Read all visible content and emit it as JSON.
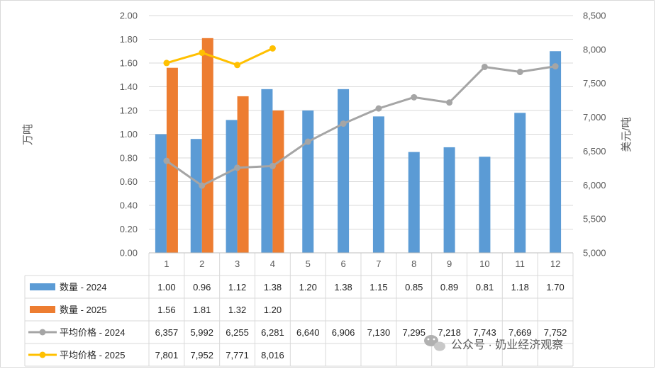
{
  "chart_data": {
    "type": "bar",
    "categories": [
      "1",
      "2",
      "3",
      "4",
      "5",
      "6",
      "7",
      "8",
      "9",
      "10",
      "11",
      "12"
    ],
    "y_left": {
      "label": "万吨",
      "ylim": [
        0,
        2.0
      ],
      "ticks": [
        "0.00",
        "0.20",
        "0.40",
        "0.60",
        "0.80",
        "1.00",
        "1.20",
        "1.40",
        "1.60",
        "1.80",
        "2.00"
      ]
    },
    "y_right": {
      "label": "美元/吨",
      "ylim": [
        5000,
        8500
      ],
      "ticks": [
        "5,000",
        "5,500",
        "6,000",
        "6,500",
        "7,000",
        "7,500",
        "8,000",
        "8,500"
      ]
    },
    "series": [
      {
        "name": "数量 - 2024",
        "type": "bar",
        "axis": "left",
        "color": "#5b9bd5",
        "values": [
          1.0,
          0.96,
          1.12,
          1.38,
          1.2,
          1.38,
          1.15,
          0.85,
          0.89,
          0.81,
          1.18,
          1.7
        ],
        "labels": [
          "1.00",
          "0.96",
          "1.12",
          "1.38",
          "1.20",
          "1.38",
          "1.15",
          "0.85",
          "0.89",
          "0.81",
          "1.18",
          "1.70"
        ]
      },
      {
        "name": "数量 - 2025",
        "type": "bar",
        "axis": "left",
        "color": "#ed7d31",
        "values": [
          1.56,
          1.81,
          1.32,
          1.2,
          null,
          null,
          null,
          null,
          null,
          null,
          null,
          null
        ],
        "labels": [
          "1.56",
          "1.81",
          "1.32",
          "1.20",
          "",
          "",
          "",
          "",
          "",
          "",
          "",
          ""
        ]
      },
      {
        "name": "平均价格 - 2024",
        "type": "line",
        "axis": "right",
        "color": "#a5a5a5",
        "values": [
          6357,
          5992,
          6255,
          6281,
          6640,
          6906,
          7130,
          7295,
          7218,
          7743,
          7669,
          7752
        ],
        "labels": [
          "6,357",
          "5,992",
          "6,255",
          "6,281",
          "6,640",
          "6,906",
          "7,130",
          "7,295",
          "7,218",
          "7,743",
          "7,669",
          "7,752"
        ]
      },
      {
        "name": "平均价格 - 2025",
        "type": "line",
        "axis": "right",
        "color": "#ffc000",
        "values": [
          7801,
          7952,
          7771,
          8016,
          null,
          null,
          null,
          null,
          null,
          null,
          null,
          null
        ],
        "labels": [
          "7,801",
          "7,952",
          "7,771",
          "8,016",
          "",
          "",
          "",
          "",
          "",
          "",
          "",
          ""
        ]
      }
    ],
    "data_table": true,
    "grid": "horizontal"
  },
  "watermark": {
    "text": "公众号 · 奶业经济观察",
    "icon": "wechat-icon"
  }
}
